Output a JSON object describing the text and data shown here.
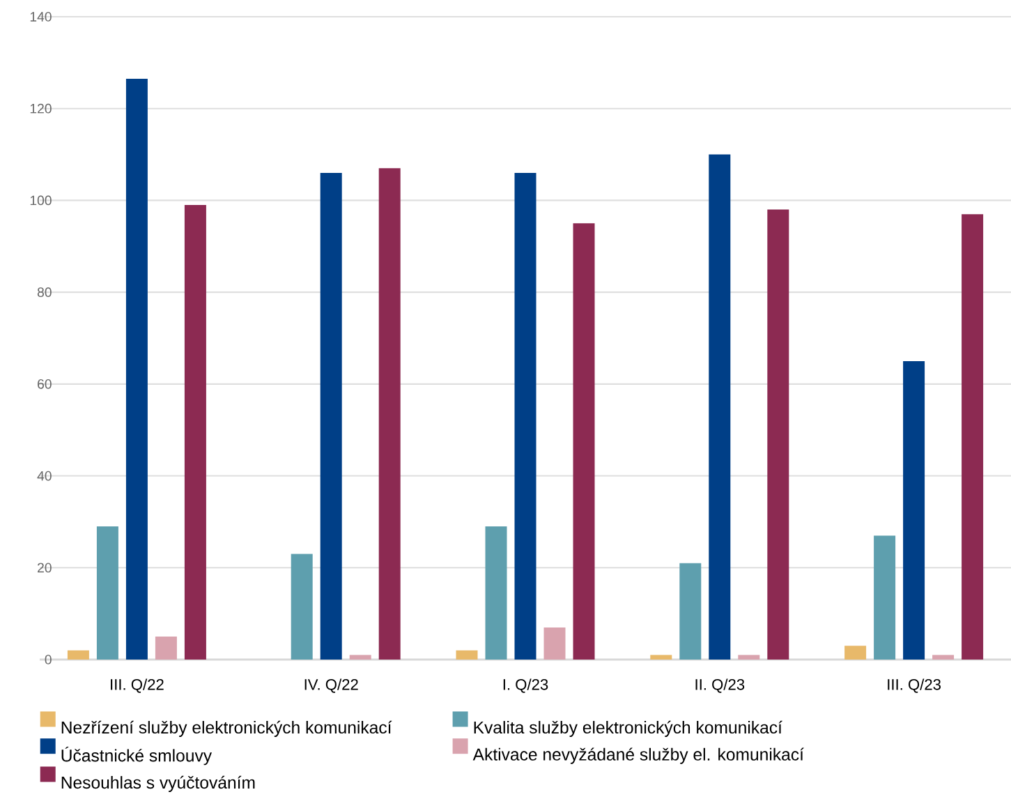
{
  "chart_data": {
    "type": "bar",
    "categories": [
      "III. Q/22",
      "IV. Q/22",
      "I. Q/23",
      "II. Q/23",
      "III. Q/23"
    ],
    "series": [
      {
        "name": "Nezřízení služby elektronických komunikací",
        "color": "#e8b96a",
        "values": [
          2,
          0,
          2,
          1,
          3
        ]
      },
      {
        "name": "Kvalita služby elektronických komunikací",
        "color": "#5e9fae",
        "values": [
          29,
          23,
          29,
          21,
          27
        ]
      },
      {
        "name": "Účastnické smlouvy",
        "color": "#003f87",
        "values": [
          126.5,
          106,
          106,
          110,
          65
        ]
      },
      {
        "name": "Aktivace nevyžádané služby el. komunikací",
        "color": "#d9a3ae",
        "values": [
          5,
          1,
          7,
          1,
          1
        ]
      },
      {
        "name": "Nesouhlas s vyúčtováním",
        "color": "#8c2a52",
        "values": [
          99,
          107,
          95,
          98,
          97
        ]
      }
    ],
    "ylim": [
      0,
      140
    ],
    "yticks": [
      0,
      20,
      40,
      60,
      80,
      100,
      120,
      140
    ],
    "grid": "y",
    "legend": "bottom"
  }
}
